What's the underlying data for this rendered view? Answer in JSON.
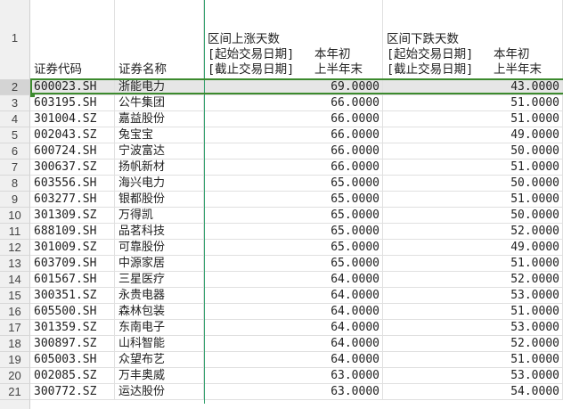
{
  "header_row_number": "1",
  "columns": {
    "code": "证券代码",
    "name": "证券名称",
    "up_days": {
      "title": "区间上涨天数",
      "start_label": "[起始交易日期]",
      "start_value": "本年初",
      "end_label": "[截止交易日期]",
      "end_value": "上半年末"
    },
    "down_days": {
      "title": "区间下跌天数",
      "start_label": "[起始交易日期]",
      "start_value": "本年初",
      "end_label": "[截止交易日期]",
      "end_value": "上半年末"
    }
  },
  "selected_row": "2",
  "colors": {
    "selection_border": "#3c8a2e",
    "freeze_line": "#2e9e6a",
    "selected_fill": "#e6e6e6"
  },
  "rows": [
    {
      "n": "2",
      "code": "600023.SH",
      "name": "浙能电力",
      "up": "69.0000",
      "down": "43.0000"
    },
    {
      "n": "3",
      "code": "603195.SH",
      "name": "公牛集团",
      "up": "66.0000",
      "down": "51.0000"
    },
    {
      "n": "4",
      "code": "301004.SZ",
      "name": "嘉益股份",
      "up": "66.0000",
      "down": "51.0000"
    },
    {
      "n": "5",
      "code": "002043.SZ",
      "name": "兔宝宝",
      "up": "66.0000",
      "down": "49.0000"
    },
    {
      "n": "6",
      "code": "600724.SH",
      "name": "宁波富达",
      "up": "66.0000",
      "down": "50.0000"
    },
    {
      "n": "7",
      "code": "300637.SZ",
      "name": "扬帆新材",
      "up": "66.0000",
      "down": "51.0000"
    },
    {
      "n": "8",
      "code": "603556.SH",
      "name": "海兴电力",
      "up": "65.0000",
      "down": "50.0000"
    },
    {
      "n": "9",
      "code": "603277.SH",
      "name": "银都股份",
      "up": "65.0000",
      "down": "51.0000"
    },
    {
      "n": "10",
      "code": "301309.SZ",
      "name": "万得凯",
      "up": "65.0000",
      "down": "50.0000"
    },
    {
      "n": "11",
      "code": "688109.SH",
      "name": "品茗科技",
      "up": "65.0000",
      "down": "52.0000"
    },
    {
      "n": "12",
      "code": "301009.SZ",
      "name": "可靠股份",
      "up": "65.0000",
      "down": "49.0000"
    },
    {
      "n": "13",
      "code": "603709.SH",
      "name": "中源家居",
      "up": "65.0000",
      "down": "51.0000"
    },
    {
      "n": "14",
      "code": "601567.SH",
      "name": "三星医疗",
      "up": "64.0000",
      "down": "52.0000"
    },
    {
      "n": "15",
      "code": "300351.SZ",
      "name": "永贵电器",
      "up": "64.0000",
      "down": "53.0000"
    },
    {
      "n": "16",
      "code": "605500.SH",
      "name": "森林包装",
      "up": "64.0000",
      "down": "51.0000"
    },
    {
      "n": "17",
      "code": "301359.SZ",
      "name": "东南电子",
      "up": "64.0000",
      "down": "53.0000"
    },
    {
      "n": "18",
      "code": "300897.SZ",
      "name": "山科智能",
      "up": "64.0000",
      "down": "52.0000"
    },
    {
      "n": "19",
      "code": "605003.SH",
      "name": "众望布艺",
      "up": "64.0000",
      "down": "51.0000"
    },
    {
      "n": "20",
      "code": "002085.SZ",
      "name": "万丰奥威",
      "up": "63.0000",
      "down": "53.0000"
    },
    {
      "n": "21",
      "code": "300772.SZ",
      "name": "运达股份",
      "up": "63.0000",
      "down": "54.0000"
    }
  ]
}
